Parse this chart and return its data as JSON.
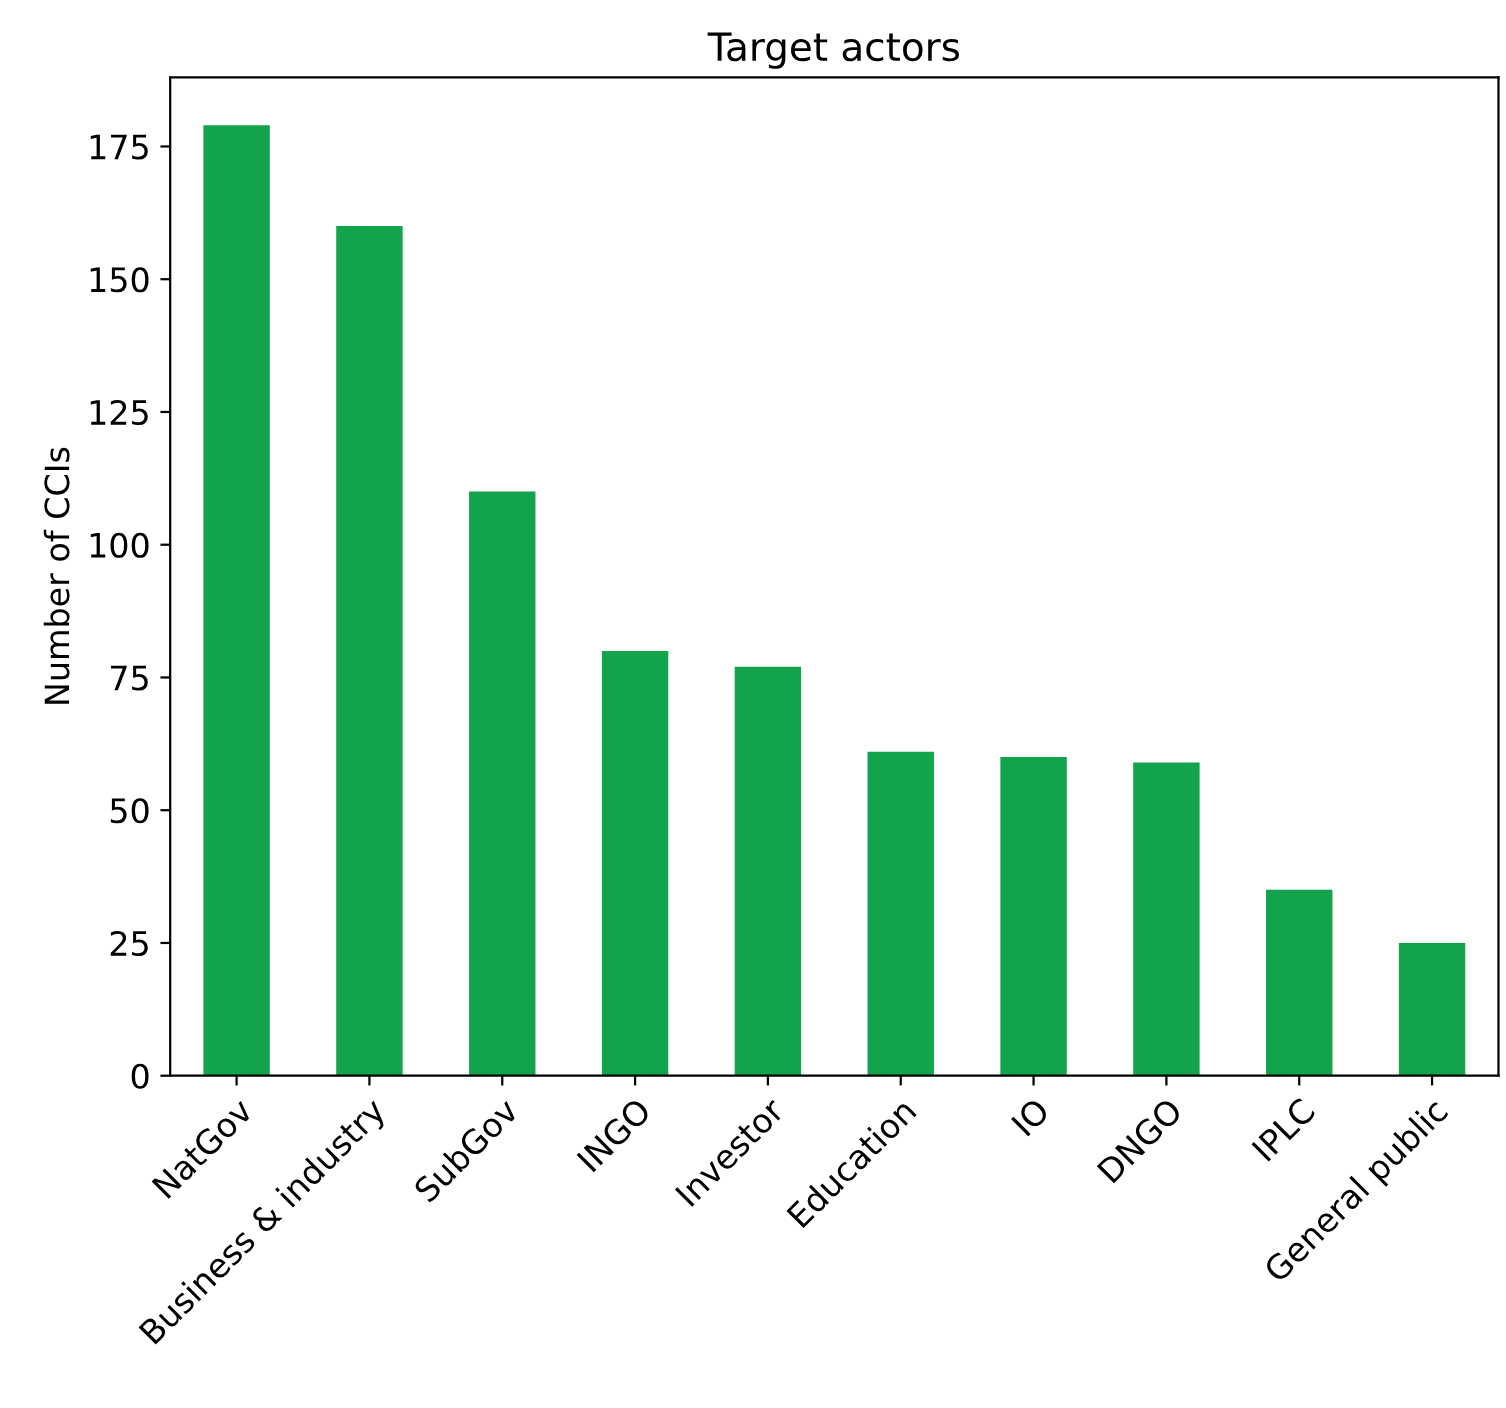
{
  "chart_data": {
    "type": "bar",
    "title": "Target actors",
    "ylabel": "Number of CCIs",
    "categories": [
      "NatGov",
      "Business & industry",
      "SubGov",
      "INGO",
      "Investor",
      "Education",
      "IO",
      "DNGO",
      "IPLC",
      "General public"
    ],
    "values": [
      179,
      160,
      110,
      80,
      77,
      61,
      60,
      59,
      35,
      25
    ],
    "color": "#13a34b",
    "ylim": [
      0,
      188
    ],
    "yticks": [
      0,
      25,
      50,
      75,
      100,
      125,
      150,
      175
    ],
    "grid": false,
    "legend": false
  }
}
